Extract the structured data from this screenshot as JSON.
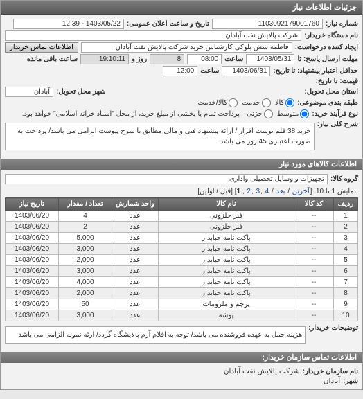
{
  "headers": {
    "main": "جزئیات اطلاعات نیاز",
    "goods": "اطلاعات کالاهای مورد نیاز",
    "buyer_notes_lbl": "توضیحات خریدار:",
    "buyer_contact": "اطلاعات تماس سازمان خریدار:"
  },
  "fields": {
    "req_no_lbl": "شماره نیاز:",
    "req_no": "1103092179001760",
    "announce_lbl": "تاریخ و ساعت اعلان عمومی:",
    "announce": "1403/05/22 - 12:39",
    "buyer_lbl": "نام دستگاه خریدار:",
    "buyer": "شرکت پالایش نفت آبادان",
    "requester_lbl": "ایجاد کننده درخواست:",
    "requester": "فاطمه شش بلوکی کارشناس خرید شرکت پالایش نفت آبادان",
    "contact_btn": "اطلاعات تماس خریدار",
    "deadline_lbl": "مهلت ارسال پاسخ: تا",
    "deadline_date": "1403/05/31",
    "time_lbl": "ساعت",
    "deadline_time": "08:00",
    "remain_days": "8",
    "remain_days_lbl": "روز و",
    "remain_time": "19:10:11",
    "remain_lbl": "ساعت باقی مانده",
    "valid_lbl": "حداقل اعتبار پیشنهاد: تا تاریخ:",
    "valid_date": "1403/06/31",
    "valid_time": "12:00",
    "price_lbl": "قیمت: تا تاریخ:",
    "city_lbl": "شهر محل تحویل:",
    "city": "آبادان",
    "state_lbl": "استان محل تحویل:",
    "budget_lbl": "طبقه بندی موضوعی:",
    "pay_lbl": "نوع فرآیند خرید:",
    "pay_note": "پرداخت تمام یا بخشی از مبلغ خرید، از محل \"اسناد خزانه اسلامی\" خواهد بود.",
    "desc_lbl": "شرح کلی نیاز:",
    "desc": "خرید 38 قلم نوشت افزار / ارائه پیشنهاد فنی و مالی مطابق با شرح پیوست الزامی می باشد/ پرداخت به صورت اعتباری 45 روز می باشد",
    "group_lbl": "گروه کالا:",
    "group": "تجهیزات و وسایل تحصیلی واداری",
    "buyer_note": "هزینه حمل به عهده فروشنده می باشد/ توجه به اقلام آرم پالایشگاه گردد/ ارئه نمونه الزامی می باشد",
    "org_lbl": "نام سازمان خریدار:",
    "org": "شرکت پالایش نفت آبادان",
    "city2_lbl": "شهر:",
    "city2": "آبادان"
  },
  "radios": {
    "budget": [
      {
        "label": "کالا",
        "checked": true
      },
      {
        "label": "خدمت",
        "checked": false
      },
      {
        "label": "کالا/خدمت",
        "checked": false
      }
    ],
    "pay": [
      {
        "label": "متوسط",
        "checked": true
      },
      {
        "label": "جزئی",
        "checked": false
      }
    ]
  },
  "pager": {
    "text_a": "نمایش 1 تا 10.",
    "links": [
      "آخرین",
      "بعد",
      "4",
      "3",
      "2"
    ],
    "current": "1",
    "text_b": "[قبل / اولین]"
  },
  "table": {
    "cols": [
      "ردیف",
      "کد کالا",
      "نام کالا",
      "واحد شمارش",
      "تعداد / مقدار",
      "تاریخ نیاز"
    ],
    "col_widths": [
      "28px",
      "50px",
      "",
      "60px",
      "70px",
      "70px"
    ],
    "rows": [
      [
        "1",
        "--",
        "فنر حلزونی",
        "عدد",
        "4",
        "1403/06/20"
      ],
      [
        "2",
        "--",
        "فنر حلزونی",
        "عدد",
        "2",
        "1403/06/20"
      ],
      [
        "3",
        "--",
        "پاکت نامه حبابدار",
        "عدد",
        "5,000",
        "1403/06/20"
      ],
      [
        "4",
        "--",
        "پاکت نامه حبابدار",
        "عدد",
        "3,000",
        "1403/06/20"
      ],
      [
        "5",
        "--",
        "پاکت نامه حبابدار",
        "عدد",
        "2,000",
        "1403/06/20"
      ],
      [
        "6",
        "--",
        "پاکت نامه حبابدار",
        "عدد",
        "3,000",
        "1403/06/20"
      ],
      [
        "7",
        "--",
        "پاکت نامه حبابدار",
        "عدد",
        "4,000",
        "1403/06/20"
      ],
      [
        "8",
        "--",
        "پاکت نامه حبابدار",
        "عدد",
        "2,000",
        "1403/06/20"
      ],
      [
        "9",
        "--",
        "پرچم و ملزومات",
        "عدد",
        "50",
        "1403/06/20"
      ],
      [
        "10",
        "--",
        "پوشه",
        "عدد",
        "3,000",
        "1403/06/20"
      ]
    ]
  }
}
